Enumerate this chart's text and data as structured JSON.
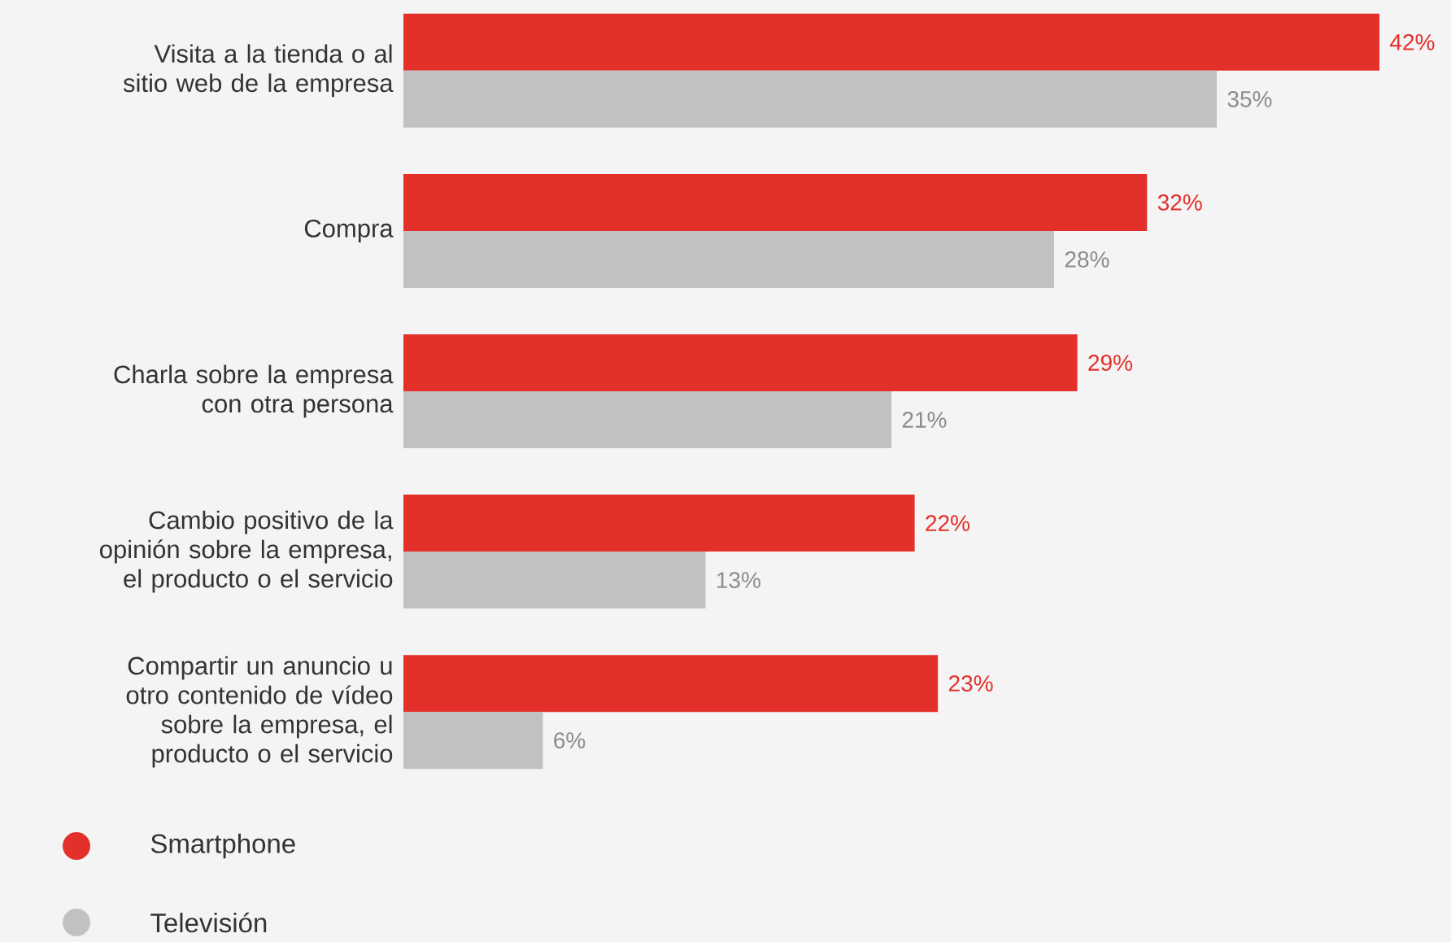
{
  "chart_data": {
    "type": "bar",
    "orientation": "horizontal",
    "categories": [
      "Visita a la tienda o al sitio web de la empresa",
      "Compra",
      "Charla sobre la empresa con otra persona",
      "Cambio positivo de la opinión sobre la empresa, el producto o el servicio",
      "Compartir un anuncio u otro contenido de vídeo sobre la empresa, el producto o el servicio"
    ],
    "series": [
      {
        "name": "Smartphone",
        "color": "#e3302b",
        "values": [
          42,
          32,
          29,
          22,
          23
        ],
        "value_labels": [
          "42%",
          "32%",
          "29%",
          "22%",
          "23%"
        ]
      },
      {
        "name": "Televisión",
        "color": "#c1c1c1",
        "values": [
          35,
          28,
          21,
          13,
          6
        ],
        "value_labels": [
          "35%",
          "28%",
          "21%",
          "13%",
          "6%"
        ]
      }
    ],
    "tick_labels": "y",
    "legend": "bottom left"
  }
}
